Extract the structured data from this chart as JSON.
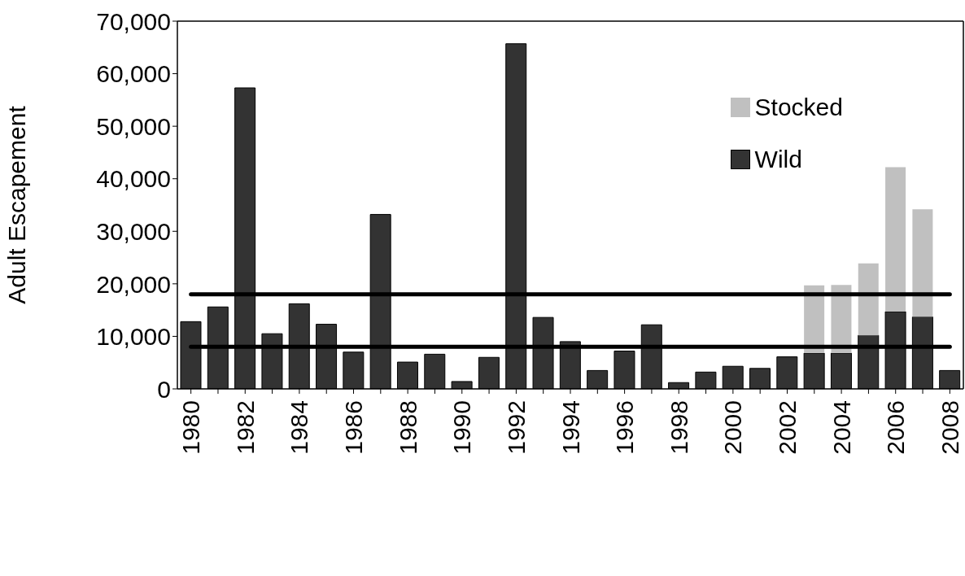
{
  "chart_data": {
    "type": "bar",
    "stacked": true,
    "ylabel": "Adult Escapement",
    "categories": [
      "1980",
      null,
      "1982",
      null,
      "1984",
      null,
      "1986",
      null,
      "1988",
      null,
      "1990",
      null,
      "1992",
      null,
      "1994",
      null,
      "1996",
      null,
      "1998",
      null,
      "2000",
      null,
      "2002",
      null,
      "2004",
      null,
      "2006",
      null,
      "2008"
    ],
    "series": [
      {
        "name": "Wild",
        "color": "#333333",
        "values": [
          12800,
          15600,
          57300,
          10500,
          16200,
          12300,
          7000,
          33200,
          5100,
          6600,
          1400,
          6000,
          65700,
          13600,
          9000,
          3500,
          7200,
          12200,
          1200,
          3200,
          4300,
          3900,
          6100,
          6800,
          6800,
          10200,
          14700,
          13700,
          3500
        ]
      },
      {
        "name": "Stocked",
        "color": "#c0c0c0",
        "values": [
          null,
          null,
          null,
          null,
          null,
          null,
          null,
          null,
          null,
          null,
          null,
          null,
          null,
          null,
          null,
          null,
          null,
          null,
          null,
          null,
          null,
          null,
          null,
          12900,
          13000,
          13700,
          27500,
          20500,
          null
        ]
      }
    ],
    "ylim": [
      0,
      70000
    ],
    "yticks": [
      0,
      {
        "value": 10000,
        "label": "10,000"
      },
      {
        "value": 20000,
        "label": "20,000"
      },
      {
        "value": 30000,
        "label": "30,000"
      },
      {
        "value": 40000,
        "label": "40,000"
      },
      {
        "value": 50000,
        "label": "50,000"
      },
      {
        "value": 60000,
        "label": "60,000"
      },
      {
        "value": 70000,
        "label": "70,000"
      }
    ],
    "ref_lines": [
      {
        "axis": "y",
        "value": 18000,
        "color": "#000000"
      },
      {
        "axis": "y",
        "value": 8000,
        "color": "#000000"
      }
    ],
    "legend": "top right",
    "grid": false
  }
}
